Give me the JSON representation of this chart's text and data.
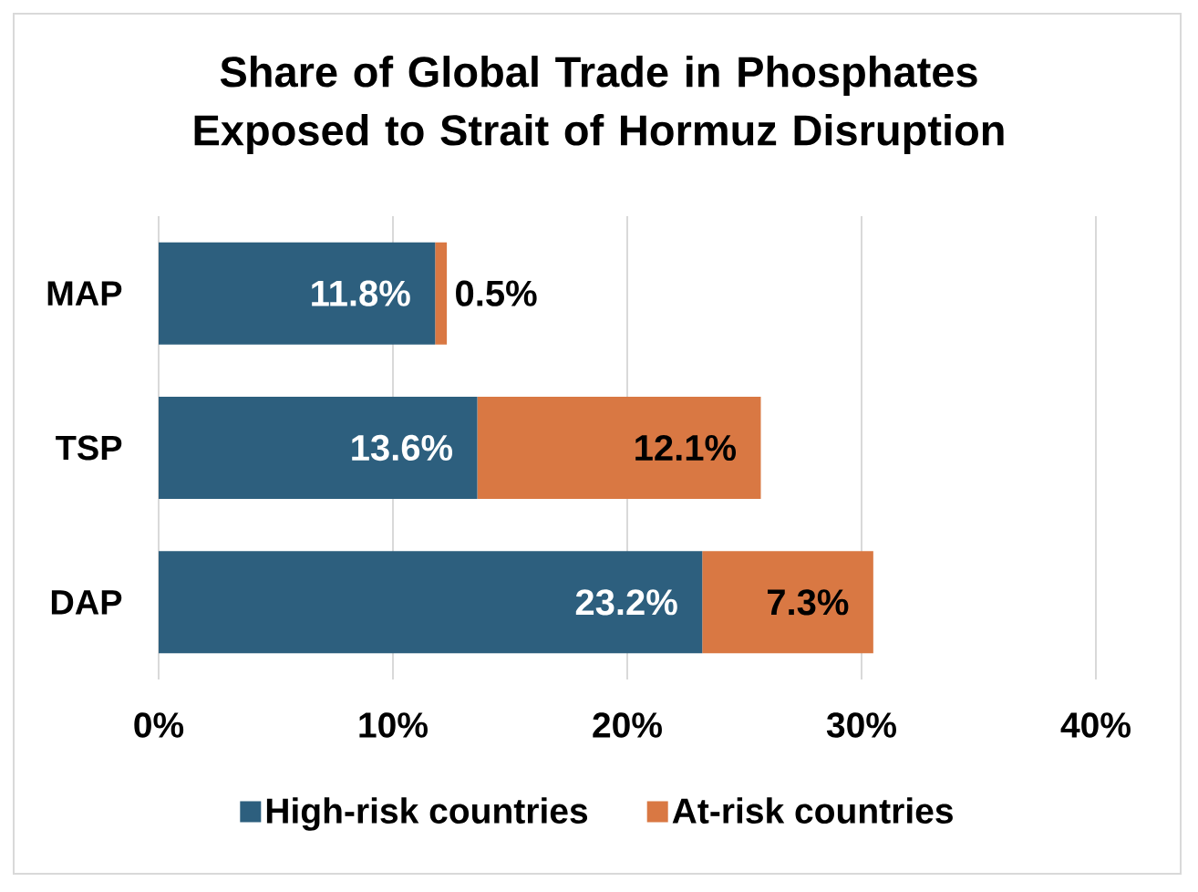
{
  "chart_data": {
    "type": "bar",
    "orientation": "horizontal",
    "stacked": true,
    "title": "Share of Global Trade in Phosphates Exposed to Strait of Hormuz Disruption",
    "categories": [
      "MAP",
      "TSP",
      "DAP"
    ],
    "series": [
      {
        "name": "High-risk countries",
        "color": "#2d5f7e",
        "values": [
          11.8,
          13.6,
          23.2
        ],
        "value_labels": [
          "11.8%",
          "13.6%",
          "23.2%"
        ]
      },
      {
        "name": "At-risk countries",
        "color": "#d97843",
        "values": [
          0.5,
          12.1,
          7.3
        ],
        "value_labels": [
          "0.5%",
          "12.1%",
          "7.3%"
        ]
      }
    ],
    "xlim": [
      0,
      40
    ],
    "xticks": [
      {
        "value": 0,
        "label": "0%"
      },
      {
        "value": 10,
        "label": "10%"
      },
      {
        "value": 20,
        "label": "20%"
      },
      {
        "value": 30,
        "label": "30%"
      },
      {
        "value": 40,
        "label": "40%"
      }
    ],
    "grid": "x",
    "legend": "bottom"
  }
}
